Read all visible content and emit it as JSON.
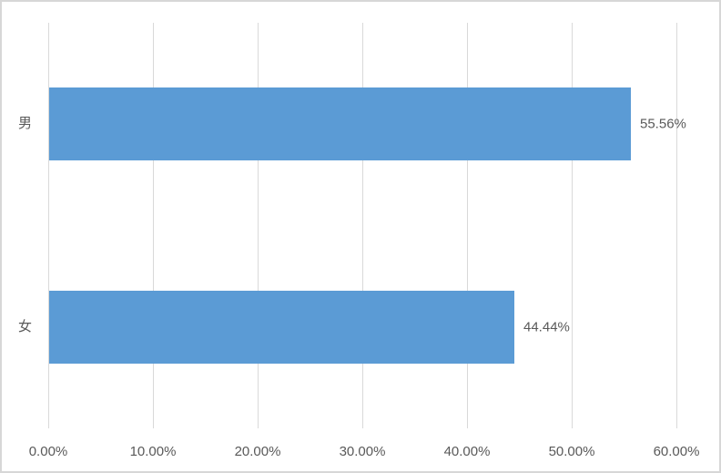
{
  "chart_data": {
    "type": "bar",
    "orientation": "horizontal",
    "title": "",
    "xlabel": "",
    "ylabel": "",
    "categories": [
      "男",
      "女"
    ],
    "values": [
      55.56,
      44.44
    ],
    "data_labels": [
      "55.56%",
      "44.44%"
    ],
    "x_ticks": [
      {
        "value": 0,
        "label": "0.00%"
      },
      {
        "value": 10,
        "label": "10.00%"
      },
      {
        "value": 20,
        "label": "20.00%"
      },
      {
        "value": 30,
        "label": "30.00%"
      },
      {
        "value": 40,
        "label": "40.00%"
      },
      {
        "value": 50,
        "label": "50.00%"
      },
      {
        "value": 60,
        "label": "60.00%"
      }
    ],
    "xlim": [
      0,
      60
    ],
    "grid": true,
    "legend": "none",
    "colors": {
      "bar": "#5b9bd5",
      "gridline": "#d9d9d9",
      "text": "#595959",
      "border": "#d7d7d7",
      "background": "#ffffff"
    }
  }
}
